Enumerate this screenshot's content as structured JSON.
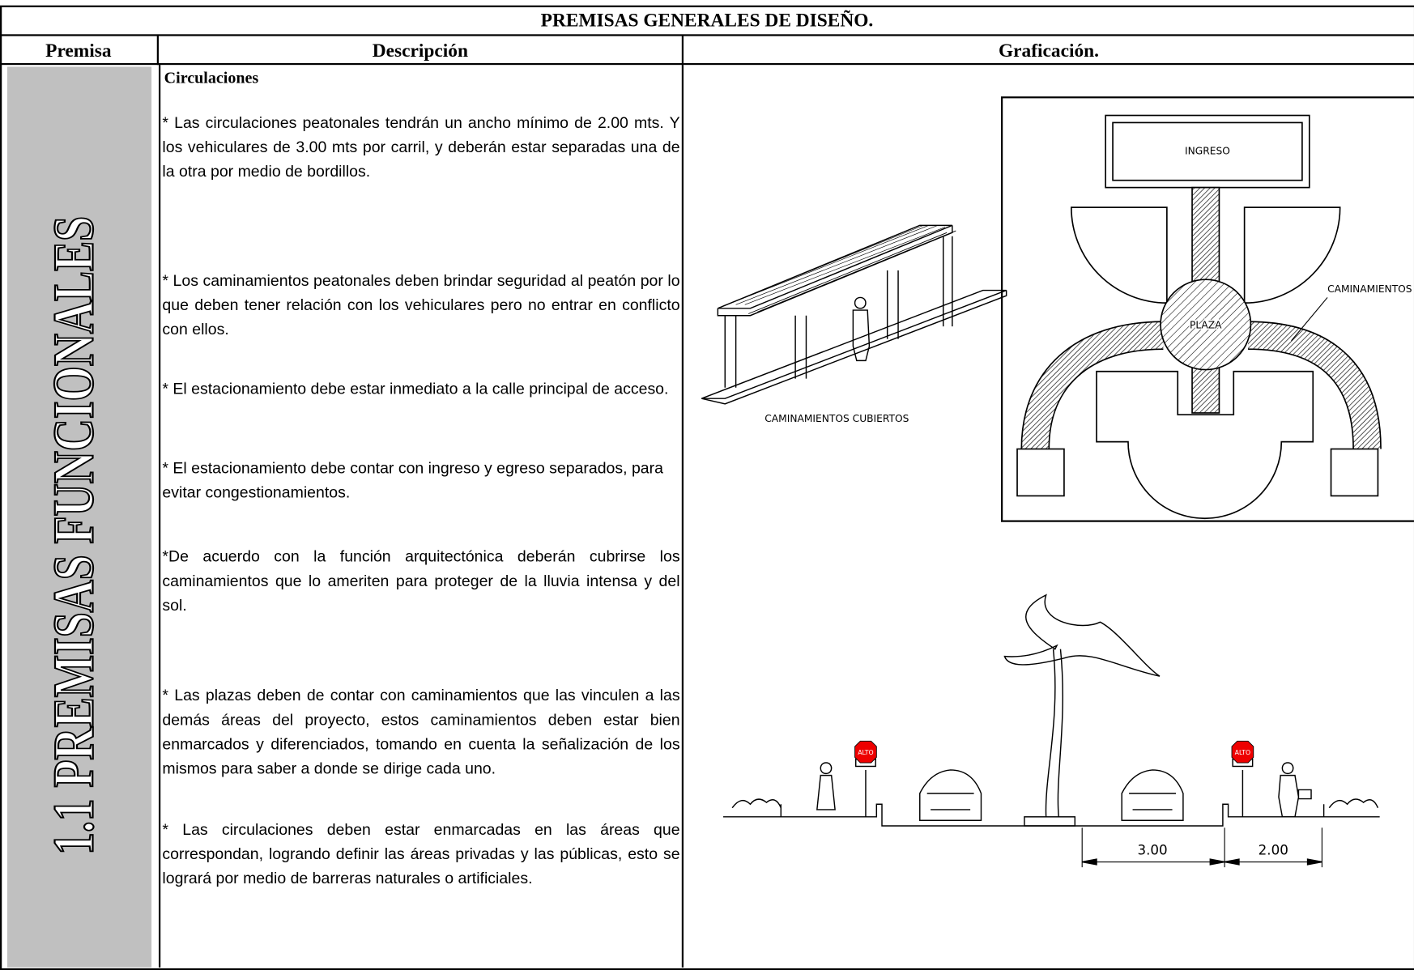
{
  "header": {
    "title": "PREMISAS GENERALES DE DISEÑO."
  },
  "columns": [
    "Premisa",
    "Descripción",
    "Graficación."
  ],
  "premisa": "1.1 PREMISAS FUNCIONALES",
  "description": {
    "heading": "Circulaciones",
    "paragraphs": [
      "* Las circulaciones peatonales tendrán un ancho mínimo de 2.00 mts. Y los vehiculares de 3.00 mts por carril, y deberán estar separadas una de la otra por medio de bordillos.",
      "* Los caminamientos peatonales deben brindar seguridad al peatón por lo que deben tener relación con los vehiculares pero no entrar en conflicto con ellos.",
      "* El estacionamiento debe estar inmediato a la calle principal de acceso.",
      "* El estacionamiento debe contar con ingreso y egreso separados, para evitar congestionamientos.",
      "*De acuerdo con la función arquitectónica deberán cubrirse los caminamientos que lo ameriten para proteger de la lluvia intensa y del sol.",
      "* Las plazas deben de contar con caminamientos que las vinculen a las demás áreas del proyecto, estos caminamientos deben estar bien enmarcados y diferenciados, tomando en cuenta la señalización de los mismos para saber a donde se dirige cada uno.",
      "* Las circulaciones deben estar enmarcadas en las áreas que correspondan, logrando definir las áreas privadas y las públicas, esto se logrará por medio de barreras naturales o artificiales."
    ]
  },
  "drawings": {
    "pergola_caption": "CAMINAMIENTOS CUBIERTOS",
    "plan": {
      "ingreso": "INGRESO",
      "plaza": "PLAZA",
      "caminamientos": "CAMINAMIENTOS"
    },
    "section": {
      "sign_left": "ALTO",
      "sign_right": "ALTO",
      "dim_road": "3.00",
      "dim_walk": "2.00"
    }
  }
}
